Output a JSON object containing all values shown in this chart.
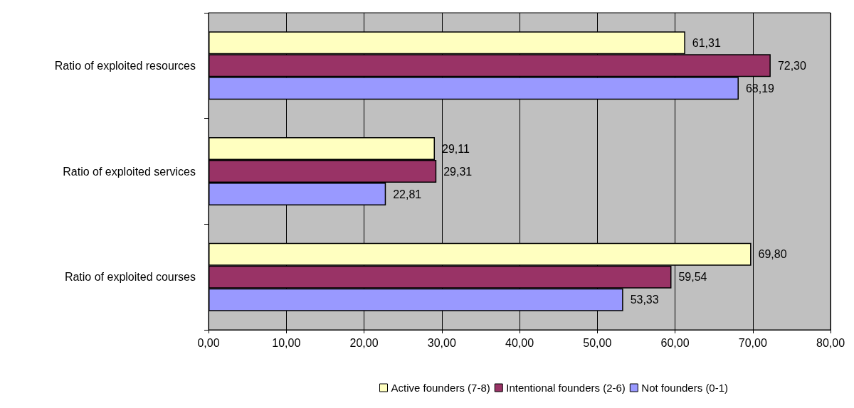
{
  "chart_data": {
    "type": "bar",
    "orientation": "horizontal",
    "categories": [
      "Ratio of exploited resources",
      "Ratio of exploited services",
      "Ratio of exploited courses"
    ],
    "series": [
      {
        "name": "Active founders (7-8)",
        "color": "#ffffc0",
        "values": [
          61.31,
          29.11,
          69.8
        ],
        "value_labels": [
          "61,31",
          "29,11",
          "69,80"
        ]
      },
      {
        "name": "Intentional founders (2-6)",
        "color": "#993366",
        "values": [
          72.3,
          29.31,
          59.54
        ],
        "value_labels": [
          "72,30",
          "29,31",
          "59,54"
        ]
      },
      {
        "name": "Not founders (0-1)",
        "color": "#9999ff",
        "values": [
          68.19,
          22.81,
          53.33
        ],
        "value_labels": [
          "68,19",
          "22,81",
          "53,33"
        ]
      }
    ],
    "xlim": [
      0,
      80
    ],
    "xticks": [
      {
        "value": 0,
        "label": "0,00"
      },
      {
        "value": 10,
        "label": "10,00"
      },
      {
        "value": 20,
        "label": "20,00"
      },
      {
        "value": 30,
        "label": "30,00"
      },
      {
        "value": 40,
        "label": "40,00"
      },
      {
        "value": 50,
        "label": "50,00"
      },
      {
        "value": 60,
        "label": "60,00"
      },
      {
        "value": 70,
        "label": "70,00"
      },
      {
        "value": 80,
        "label": "80,00"
      }
    ],
    "grid": "x",
    "legend": "bottom"
  }
}
